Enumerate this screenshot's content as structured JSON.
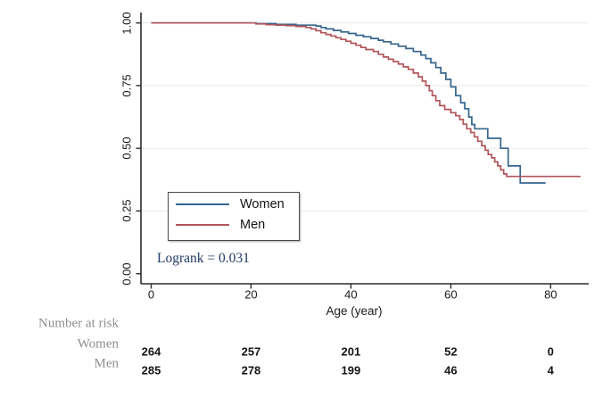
{
  "chart_data": {
    "type": "line",
    "subtype": "kaplan-meier-step",
    "title": "",
    "xlabel": "Age (year)",
    "ylabel": "",
    "xlim": [
      0,
      88
    ],
    "ylim": [
      0,
      1
    ],
    "x_ticks": [
      0,
      20,
      40,
      60,
      80
    ],
    "y_ticks": [
      "0.00",
      "0.25",
      "0.50",
      "0.75",
      "1.00"
    ],
    "y_tick_values": [
      0,
      0.25,
      0.5,
      0.75,
      1
    ],
    "grid": "horizontal-at-y-ticks-except-zero",
    "legend_position": "inside-lower-left",
    "annotation": "Logrank =  0.031",
    "colors": {
      "women": "#35658e",
      "men": "#b0555a",
      "gridline": "#e9e9e9",
      "axis": "#2b2b2b",
      "annotation_text": "#1e3a66",
      "risk_label_text": "#8f8f8f"
    },
    "series": [
      {
        "name": "Women",
        "color": "#35658e",
        "points": [
          [
            0,
            1.0
          ],
          [
            21,
            0.997
          ],
          [
            25,
            0.994
          ],
          [
            29,
            0.991
          ],
          [
            33,
            0.988
          ],
          [
            34,
            0.982
          ],
          [
            35,
            0.976
          ],
          [
            36.5,
            0.97
          ],
          [
            38,
            0.964
          ],
          [
            39.5,
            0.958
          ],
          [
            41,
            0.951
          ],
          [
            42.5,
            0.945
          ],
          [
            44,
            0.938
          ],
          [
            45.5,
            0.931
          ],
          [
            46.5,
            0.925
          ],
          [
            48,
            0.916
          ],
          [
            49.5,
            0.907
          ],
          [
            51,
            0.898
          ],
          [
            52.5,
            0.886
          ],
          [
            54,
            0.872
          ],
          [
            55,
            0.858
          ],
          [
            56,
            0.841
          ],
          [
            57,
            0.822
          ],
          [
            58,
            0.8
          ],
          [
            59,
            0.775
          ],
          [
            60,
            0.745
          ],
          [
            61,
            0.71
          ],
          [
            62,
            0.682
          ],
          [
            62.8,
            0.658
          ],
          [
            63.6,
            0.625
          ],
          [
            64.2,
            0.595
          ],
          [
            64.8,
            0.578
          ],
          [
            67.4,
            0.54
          ],
          [
            70,
            0.5
          ],
          [
            71.5,
            0.43
          ],
          [
            73.9,
            0.362
          ],
          [
            79,
            0.362
          ]
        ]
      },
      {
        "name": "Men",
        "color": "#b0555a",
        "points": [
          [
            0,
            1.0
          ],
          [
            21,
            0.996
          ],
          [
            23,
            0.993
          ],
          [
            25,
            0.991
          ],
          [
            27,
            0.989
          ],
          [
            29,
            0.986
          ],
          [
            31,
            0.982
          ],
          [
            32,
            0.976
          ],
          [
            33,
            0.969
          ],
          [
            34,
            0.961
          ],
          [
            35,
            0.954
          ],
          [
            36,
            0.948
          ],
          [
            37,
            0.941
          ],
          [
            38,
            0.934
          ],
          [
            39,
            0.927
          ],
          [
            40,
            0.919
          ],
          [
            41,
            0.911
          ],
          [
            42,
            0.902
          ],
          [
            43,
            0.894
          ],
          [
            44.5,
            0.886
          ],
          [
            45.5,
            0.875
          ],
          [
            46.5,
            0.864
          ],
          [
            47.5,
            0.855
          ],
          [
            48.5,
            0.846
          ],
          [
            49.5,
            0.836
          ],
          [
            50.5,
            0.825
          ],
          [
            51.5,
            0.815
          ],
          [
            52.5,
            0.8
          ],
          [
            53.5,
            0.785
          ],
          [
            54.3,
            0.768
          ],
          [
            55,
            0.75
          ],
          [
            55.7,
            0.73
          ],
          [
            56.3,
            0.71
          ],
          [
            57,
            0.69
          ],
          [
            57.8,
            0.67
          ],
          [
            58.8,
            0.655
          ],
          [
            60,
            0.642
          ],
          [
            61,
            0.63
          ],
          [
            61.8,
            0.615
          ],
          [
            62.5,
            0.596
          ],
          [
            63.2,
            0.578
          ],
          [
            64,
            0.563
          ],
          [
            64.7,
            0.546
          ],
          [
            65.4,
            0.528
          ],
          [
            66.2,
            0.51
          ],
          [
            66.9,
            0.492
          ],
          [
            67.5,
            0.475
          ],
          [
            68.2,
            0.462
          ],
          [
            68.8,
            0.446
          ],
          [
            69.4,
            0.43
          ],
          [
            70,
            0.414
          ],
          [
            70.6,
            0.398
          ],
          [
            71.2,
            0.388
          ],
          [
            86,
            0.388
          ]
        ]
      }
    ],
    "risk_table": {
      "title": "Number at risk",
      "ages": [
        0,
        20,
        40,
        60,
        80
      ],
      "rows": [
        {
          "label": "Women",
          "values": [
            "264",
            "257",
            "201",
            "52",
            "0"
          ]
        },
        {
          "label": "Men",
          "values": [
            "285",
            "278",
            "199",
            "46",
            "4"
          ]
        }
      ]
    }
  }
}
